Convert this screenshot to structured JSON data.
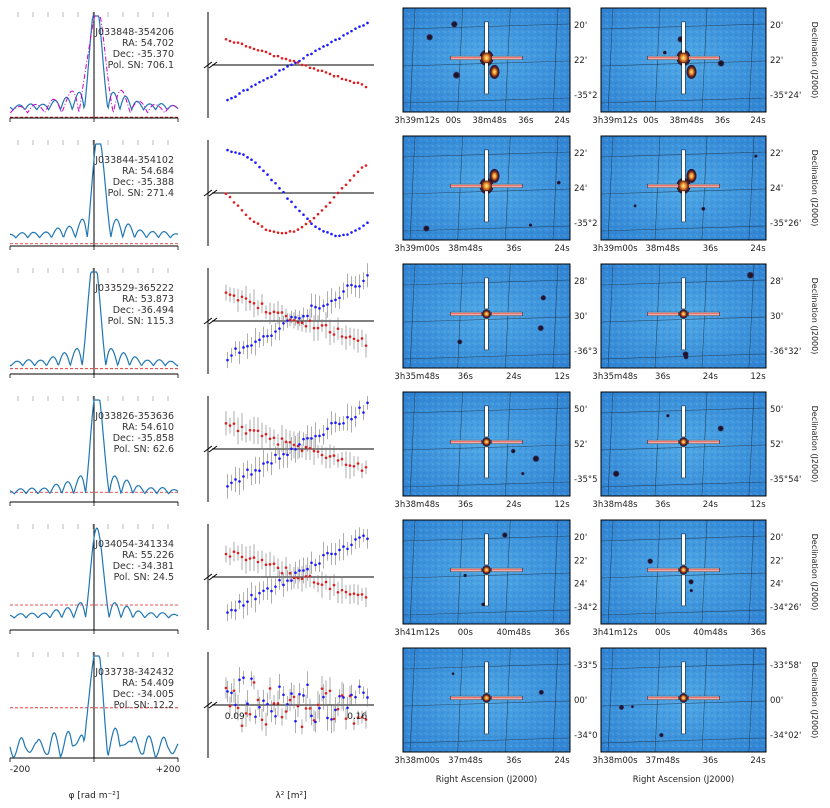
{
  "colors": {
    "rmsf": "#1f77b4",
    "clean": "#cc00cc",
    "red": "#e41a1c",
    "blue": "#1a1aff",
    "hpx": "#9aa0a6"
  },
  "chart_data": {
    "type": "scatter",
    "phi_axis": {
      "label": "φ [rad m⁻²]",
      "tick_left": "-200",
      "tick_right": "+200",
      "range": [
        -200,
        200
      ]
    },
    "lambda_axis": {
      "label": "λ² [m²]",
      "tick_left": "0.09",
      "tick_right": "0.16",
      "range": [
        0.085,
        0.165
      ]
    },
    "ra_label": "Right Ascension (J2000)",
    "dec_label": "Declination (J2000)",
    "sources": [
      {
        "name": "J033848-354206",
        "ra_text": "RA: 54.702",
        "dec_text": "Dec: -35.370",
        "sn_text": "Pol. SN: 706.1",
        "pol_sn": 706.1,
        "peak_phi": 5,
        "clean": true,
        "pattern": "flip",
        "errors": false,
        "ra_ticks": [
          "3h39m12s",
          "00s",
          "38m48s",
          "36s",
          "24s"
        ],
        "dec_ticks_a": [
          "20'",
          "22'",
          "-35°2"
        ],
        "dec_ticks_b": [
          "20'",
          "22'",
          "-35°24'"
        ]
      },
      {
        "name": "J033844-354102",
        "ra_text": "RA: 54.684",
        "dec_text": "Dec: -35.388",
        "sn_text": "Pol. SN: 271.4",
        "pol_sn": 271.4,
        "peak_phi": 12,
        "clean": false,
        "pattern": "wave",
        "errors": false,
        "ra_ticks": [
          "3h39m00s",
          "38m48s",
          "36s",
          "24s"
        ],
        "dec_ticks_a": [
          "22'",
          "24'",
          "-35°2"
        ],
        "dec_ticks_b": [
          "22'",
          "24'",
          "-35°26'"
        ]
      },
      {
        "name": "J033529-365222",
        "ra_text": "RA: 53.873",
        "dec_text": "Dec: -36.494",
        "sn_text": "Pol. SN: 115.3",
        "pol_sn": 115.3,
        "peak_phi": 0,
        "clean": false,
        "pattern": "flip",
        "errors": true,
        "ra_ticks": [
          "3h35m48s",
          "36s",
          "24s",
          "12s"
        ],
        "dec_ticks_a": [
          "28'",
          "30'",
          "-36°3"
        ],
        "dec_ticks_b": [
          "28'",
          "30'",
          "-36°32'"
        ]
      },
      {
        "name": "J033826-353636",
        "ra_text": "RA: 54.610",
        "dec_text": "Dec: -35.858",
        "sn_text": "Pol. SN: 62.6",
        "pol_sn": 62.6,
        "peak_phi": 8,
        "clean": false,
        "pattern": "flip",
        "errors": true,
        "ra_ticks": [
          "3h38m48s",
          "36s",
          "24s",
          "12s"
        ],
        "dec_ticks_a": [
          "50'",
          "52'",
          "-35°5"
        ],
        "dec_ticks_b": [
          "50'",
          "52'",
          "-35°54'"
        ]
      },
      {
        "name": "J034054-341334",
        "ra_text": "RA: 55.226",
        "dec_text": "Dec: -34.381",
        "sn_text": "Pol. SN: 24.5",
        "pol_sn": 24.5,
        "peak_phi": 8,
        "clean": false,
        "pattern": "flip",
        "errors": true,
        "ra_ticks": [
          "3h41m12s",
          "00s",
          "40m48s",
          "36s"
        ],
        "dec_ticks_a": [
          "20'",
          "22'",
          "24'",
          "-34°2"
        ],
        "dec_ticks_b": [
          "20'",
          "22'",
          "24'",
          "-34°26'"
        ]
      },
      {
        "name": "J033738-342432",
        "ra_text": "RA: 54.409",
        "dec_text": "Dec: -34.005",
        "sn_text": "Pol. SN: 12.2",
        "pol_sn": 12.2,
        "peak_phi": 5,
        "clean": false,
        "pattern": "noise",
        "errors": true,
        "ra_ticks": [
          "3h38m00s",
          "37m48s",
          "36s",
          "24s"
        ],
        "dec_ticks_a": [
          "-33°5",
          "00'",
          "-34°0"
        ],
        "dec_ticks_b": [
          "-33°58'",
          "00'",
          "-34°02'"
        ]
      }
    ]
  }
}
